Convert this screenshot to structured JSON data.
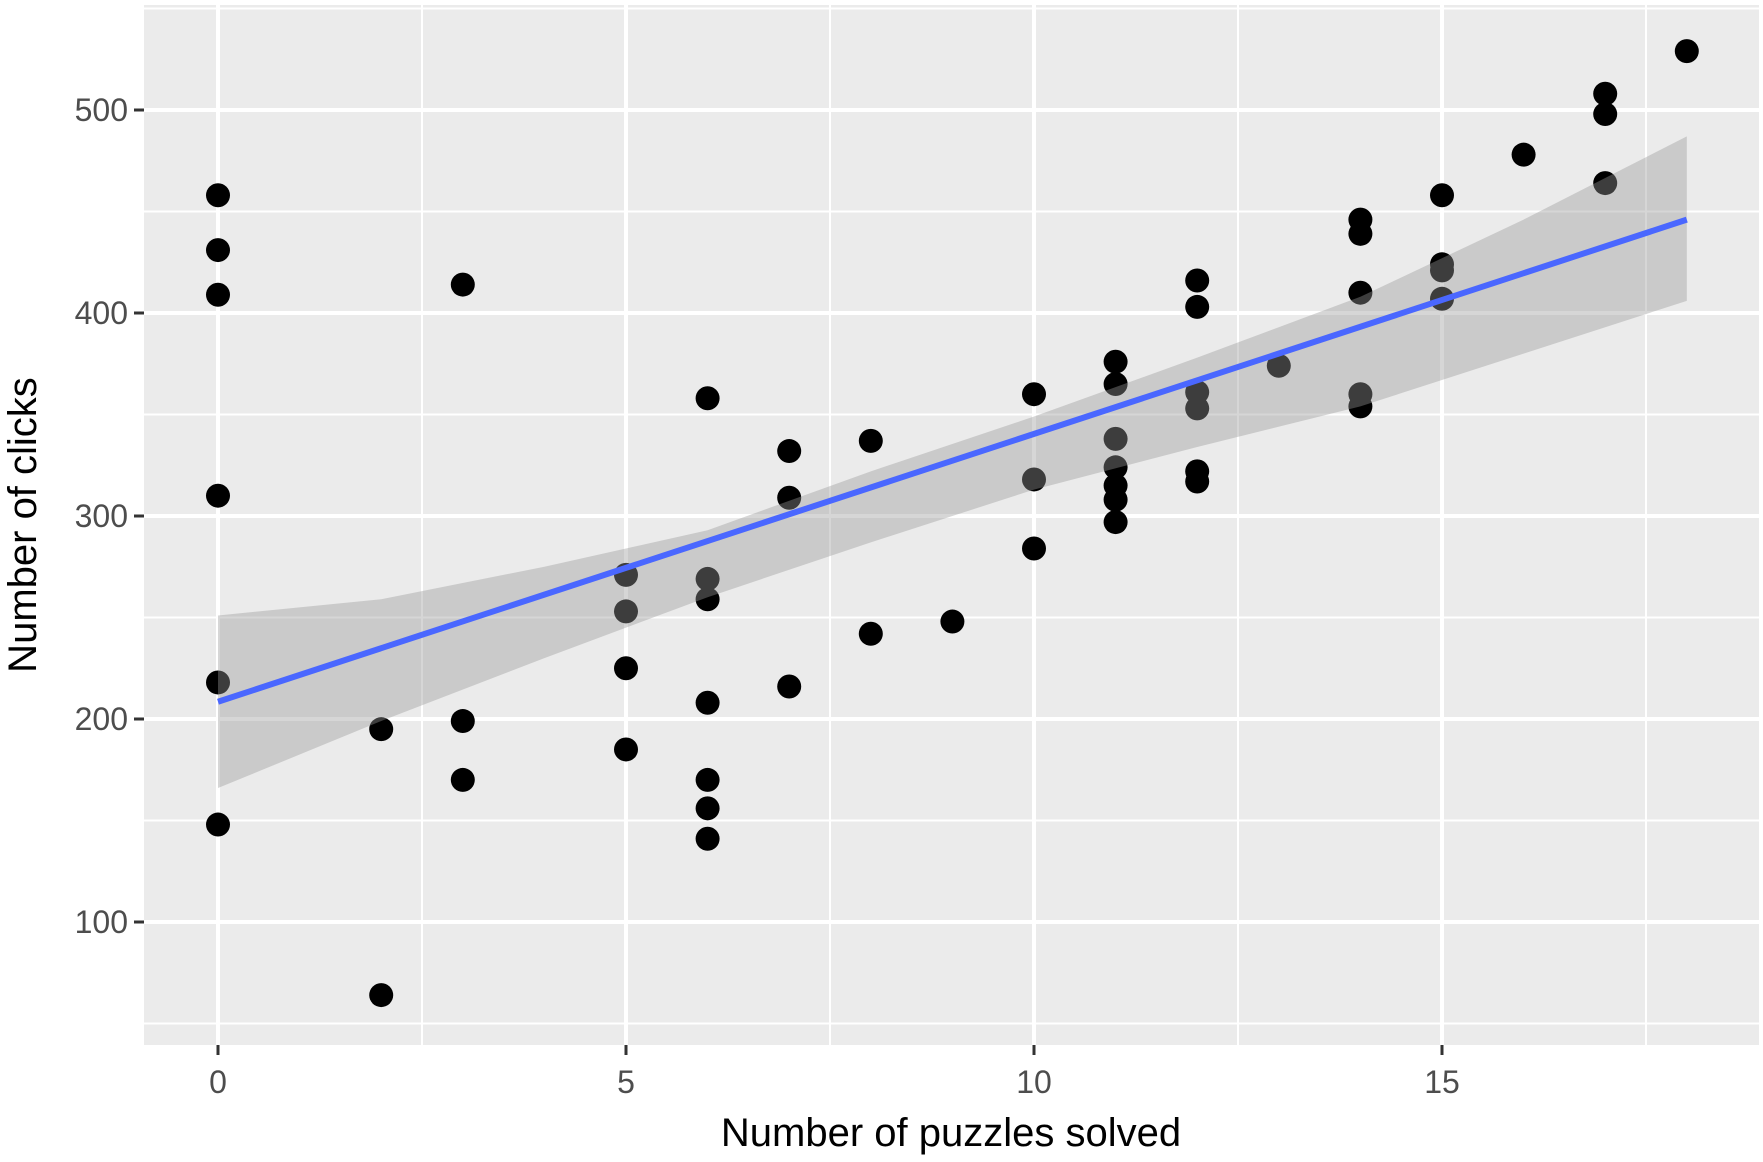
{
  "chart_data": {
    "type": "scatter",
    "title": "",
    "xlabel": "Number of puzzles solved",
    "ylabel": "Number of clicks",
    "xlim": [
      -0.9,
      18.9
    ],
    "ylim": [
      39,
      552
    ],
    "x_ticks": [
      0,
      5,
      10,
      15
    ],
    "y_ticks": [
      100,
      200,
      300,
      400,
      500
    ],
    "grid": true,
    "legend": null,
    "points": [
      {
        "x": 0,
        "y": 458
      },
      {
        "x": 0,
        "y": 431
      },
      {
        "x": 0,
        "y": 409
      },
      {
        "x": 0,
        "y": 310
      },
      {
        "x": 0,
        "y": 218
      },
      {
        "x": 0,
        "y": 148
      },
      {
        "x": 2,
        "y": 195
      },
      {
        "x": 2,
        "y": 64
      },
      {
        "x": 3,
        "y": 414
      },
      {
        "x": 3,
        "y": 199
      },
      {
        "x": 3,
        "y": 170
      },
      {
        "x": 5,
        "y": 271
      },
      {
        "x": 5,
        "y": 253
      },
      {
        "x": 5,
        "y": 225
      },
      {
        "x": 5,
        "y": 185
      },
      {
        "x": 6,
        "y": 358
      },
      {
        "x": 6,
        "y": 269
      },
      {
        "x": 6,
        "y": 259
      },
      {
        "x": 6,
        "y": 208
      },
      {
        "x": 6,
        "y": 170
      },
      {
        "x": 6,
        "y": 156
      },
      {
        "x": 6,
        "y": 141
      },
      {
        "x": 7,
        "y": 332
      },
      {
        "x": 7,
        "y": 309
      },
      {
        "x": 7,
        "y": 216
      },
      {
        "x": 8,
        "y": 337
      },
      {
        "x": 8,
        "y": 242
      },
      {
        "x": 9,
        "y": 248
      },
      {
        "x": 10,
        "y": 360
      },
      {
        "x": 10,
        "y": 318
      },
      {
        "x": 10,
        "y": 284
      },
      {
        "x": 11,
        "y": 376
      },
      {
        "x": 11,
        "y": 365
      },
      {
        "x": 11,
        "y": 338
      },
      {
        "x": 11,
        "y": 324
      },
      {
        "x": 11,
        "y": 315
      },
      {
        "x": 11,
        "y": 308
      },
      {
        "x": 11,
        "y": 297
      },
      {
        "x": 12,
        "y": 416
      },
      {
        "x": 12,
        "y": 403
      },
      {
        "x": 12,
        "y": 361
      },
      {
        "x": 12,
        "y": 353
      },
      {
        "x": 12,
        "y": 322
      },
      {
        "x": 12,
        "y": 317
      },
      {
        "x": 13,
        "y": 374
      },
      {
        "x": 14,
        "y": 446
      },
      {
        "x": 14,
        "y": 439
      },
      {
        "x": 14,
        "y": 410
      },
      {
        "x": 14,
        "y": 360
      },
      {
        "x": 14,
        "y": 354
      },
      {
        "x": 15,
        "y": 458
      },
      {
        "x": 15,
        "y": 424
      },
      {
        "x": 15,
        "y": 421
      },
      {
        "x": 15,
        "y": 407
      },
      {
        "x": 16,
        "y": 478
      },
      {
        "x": 17,
        "y": 508
      },
      {
        "x": 17,
        "y": 498
      },
      {
        "x": 17,
        "y": 464
      },
      {
        "x": 18,
        "y": 529
      }
    ],
    "smooth": {
      "method": "lm",
      "line": {
        "x0": 0,
        "y0": 208.5,
        "x1": 18,
        "y1": 446
      },
      "ribbon": {
        "x": [
          0,
          2,
          4,
          6,
          8,
          10,
          12,
          14,
          16,
          18
        ],
        "upper": [
          251,
          259,
          275,
          293,
          322,
          349,
          378,
          408,
          446,
          487
        ],
        "lower": [
          166,
          199,
          230,
          260,
          287,
          313,
          334,
          354,
          380,
          406
        ]
      }
    },
    "colors": {
      "panel_bg": "#ebebeb",
      "grid": "#ffffff",
      "point": "#000000",
      "line": "#4a67ff",
      "ribbon": "#999999"
    }
  }
}
